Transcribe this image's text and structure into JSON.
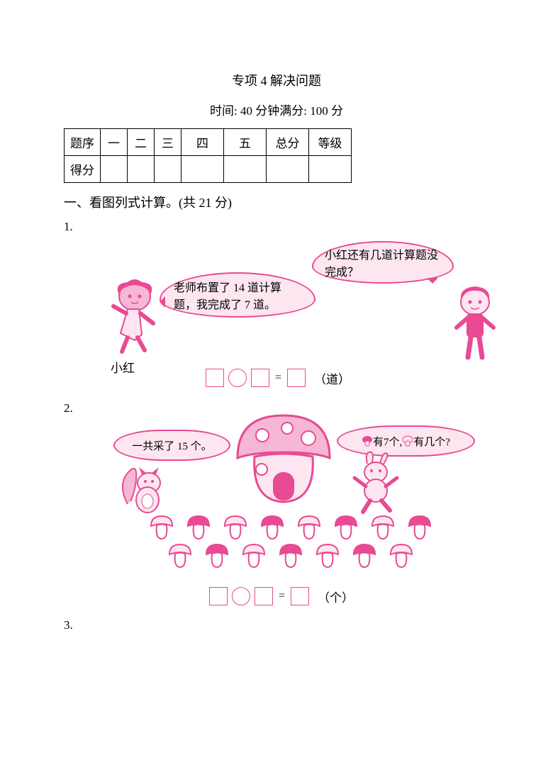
{
  "colors": {
    "pink": "#e84a93",
    "pink_light": "#fde6f0",
    "pink_fill": "#f6b7d4",
    "black": "#000000",
    "white": "#ffffff"
  },
  "header": {
    "title": "专项 4  解决问题",
    "subtitle": "时间: 40 分钟满分: 100  分"
  },
  "score_table": {
    "row1": [
      "题序",
      "一",
      "二",
      "三",
      "四",
      "五",
      "总分",
      "等级"
    ],
    "row2_label": "得分"
  },
  "section1": {
    "heading": "一、看图列式计算。(共 21  分)"
  },
  "q1": {
    "num": "1.",
    "bubble_left": "老师布置了 14 道计算题，我完成了 7 道。",
    "bubble_right": "小红还有几道计算题没完成？",
    "girl_label": "小红",
    "eq_sign": "=",
    "unit": "（道）"
  },
  "q2": {
    "num": "2.",
    "bubble_left": "一共采了 15 个。",
    "bubble_right_a": "有7个,",
    "bubble_right_b": "有几个?",
    "mushrooms": {
      "row1": 8,
      "row2": 7
    },
    "eq_sign": "=",
    "unit": "（个）"
  },
  "q3": {
    "num": "3."
  },
  "style": {
    "body_font_size": 17,
    "title_font_size": 18,
    "box_border_width": 1.5,
    "box_size": 26
  }
}
